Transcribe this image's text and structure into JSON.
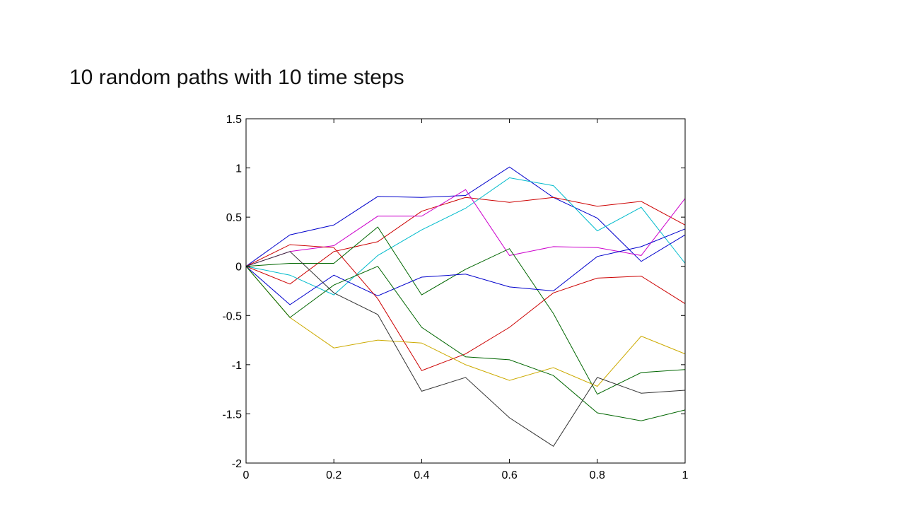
{
  "slide": {
    "title": "10 random paths with 10 time steps"
  },
  "chart_data": {
    "type": "line",
    "title": "",
    "xlabel": "",
    "ylabel": "",
    "x": [
      0,
      0.1,
      0.2,
      0.3,
      0.4,
      0.5,
      0.6,
      0.7,
      0.8,
      0.9,
      1
    ],
    "xlim": [
      0,
      1
    ],
    "ylim": [
      -2,
      1.5
    ],
    "x_ticks": [
      0,
      0.2,
      0.4,
      0.6,
      0.8,
      1
    ],
    "x_tick_labels": [
      "0",
      "0.2",
      "0.4",
      "0.6",
      "0.8",
      "1"
    ],
    "y_ticks": [
      1.5,
      1,
      0.5,
      0,
      -0.5,
      -1,
      -1.5,
      -2
    ],
    "y_tick_labels": [
      "1.5",
      "1",
      "0.5",
      "0",
      "-0.5",
      "-1",
      "-1.5",
      "-2"
    ],
    "grid": false,
    "series": [
      {
        "color": "#0000cc",
        "values": [
          0,
          0.32,
          0.42,
          0.71,
          0.7,
          0.72,
          1.01,
          0.7,
          0.49,
          0.05,
          0.32
        ]
      },
      {
        "color": "#cc0000",
        "values": [
          0,
          -0.18,
          0.15,
          0.25,
          0.56,
          0.7,
          0.65,
          0.7,
          0.61,
          0.66,
          0.42
        ]
      },
      {
        "color": "#00bbcc",
        "values": [
          0,
          -0.09,
          -0.29,
          0.11,
          0.37,
          0.59,
          0.9,
          0.82,
          0.36,
          0.6,
          0.03
        ]
      },
      {
        "color": "#cc00cc",
        "values": [
          0,
          0.15,
          0.21,
          0.51,
          0.51,
          0.78,
          0.11,
          0.2,
          0.19,
          0.11,
          0.69
        ]
      },
      {
        "color": "#006600",
        "values": [
          0,
          0.03,
          0.03,
          0.4,
          -0.29,
          -0.03,
          0.18,
          -0.48,
          -1.3,
          -1.08,
          -1.05
        ]
      },
      {
        "color": "#0000cc",
        "values": [
          0,
          -0.39,
          -0.09,
          -0.3,
          -0.11,
          -0.08,
          -0.21,
          -0.25,
          0.1,
          0.2,
          0.38
        ]
      },
      {
        "color": "#cc0000",
        "values": [
          0,
          0.22,
          0.19,
          -0.33,
          -1.06,
          -0.89,
          -0.62,
          -0.27,
          -0.12,
          -0.1,
          -0.38
        ]
      },
      {
        "color": "#ccaa00",
        "values": [
          0,
          -0.52,
          -0.83,
          -0.75,
          -0.78,
          -1.0,
          -1.16,
          -1.03,
          -1.22,
          -0.71,
          -0.89
        ]
      },
      {
        "color": "#006600",
        "values": [
          0,
          -0.52,
          -0.19,
          0.0,
          -0.62,
          -0.92,
          -0.95,
          -1.11,
          -1.49,
          -1.57,
          -1.46
        ]
      },
      {
        "color": "#333333",
        "values": [
          0,
          0.15,
          -0.27,
          -0.49,
          -1.27,
          -1.13,
          -1.54,
          -1.83,
          -1.13,
          -1.29,
          -1.26
        ]
      }
    ]
  }
}
